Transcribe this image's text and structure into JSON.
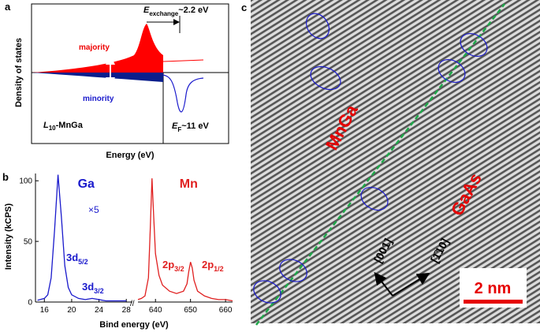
{
  "panel_a": {
    "label": "a",
    "y_label": "Density of states",
    "x_label": "Energy (eV)",
    "majority": "majority",
    "minority": "minority",
    "material": {
      "italic": "L",
      "sub": "10",
      "rest": "-MnGa"
    },
    "exchange": {
      "main": "E",
      "sub": "exchange",
      "rest": "~2.2 eV"
    },
    "fermi": {
      "main": "E",
      "sub": "F",
      "rest": "~11 eV"
    }
  },
  "chart_data": {
    "type": "line",
    "label": "b",
    "y_label": "Intensity (kCPS)",
    "x_label": "Bind energy (eV)",
    "ylim": [
      0,
      106
    ],
    "yticks": [
      0,
      50,
      100
    ],
    "x_segments": [
      {
        "xlim": [
          14.7,
          28.9
        ],
        "xticks": [
          16,
          20,
          24,
          28
        ]
      },
      {
        "xlim": [
          635,
          662
        ],
        "xticks": [
          640,
          650,
          660
        ]
      }
    ],
    "series": [
      {
        "name": "Ga",
        "color": "#1a1acc",
        "segment": 0,
        "x": [
          15,
          16,
          16.5,
          17,
          17.5,
          18,
          18.5,
          19,
          19.5,
          20,
          21,
          22,
          23,
          24,
          25,
          26,
          27,
          28
        ],
        "values": [
          1.5,
          3,
          6,
          20,
          60,
          105,
          70,
          30,
          12,
          6,
          3,
          2,
          3,
          2,
          1,
          1,
          1,
          1
        ]
      },
      {
        "name": "Mn",
        "color": "#e02020",
        "segment": 1,
        "x": [
          635,
          636,
          637,
          638,
          638.5,
          639,
          639.5,
          640,
          641,
          642,
          644,
          646,
          648,
          649,
          649.5,
          650,
          650.5,
          651,
          652,
          654,
          656,
          658,
          660,
          662
        ],
        "values": [
          2,
          3,
          5,
          20,
          60,
          102,
          70,
          40,
          22,
          14,
          9,
          7,
          9,
          15,
          25,
          33,
          28,
          18,
          9,
          5,
          3,
          2,
          2,
          1
        ]
      }
    ],
    "annotations": {
      "scale": "×5",
      "ga_d52": {
        "main": "3d",
        "sub": "5/2"
      },
      "ga_d32": {
        "main": "3d",
        "sub": "3/2"
      },
      "mn_p32": {
        "main": "2p",
        "sub": "3/2"
      },
      "mn_p12": {
        "main": "2p",
        "sub": "1/2"
      }
    }
  },
  "panel_c": {
    "label": "c",
    "mngа": "MnGa",
    "gaas": "GaAs",
    "dir_001": "[001]",
    "dir_110": "[1̄10]",
    "scale_bar": "2 nm"
  }
}
